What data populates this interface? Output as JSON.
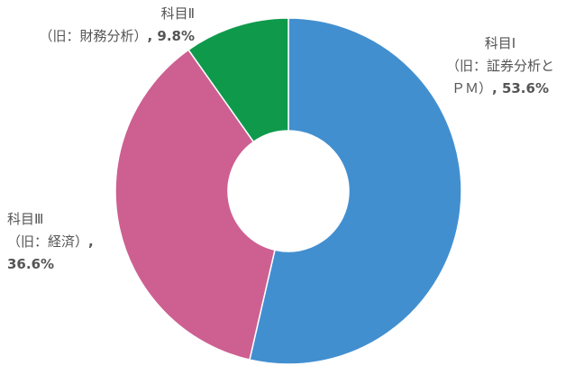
{
  "chart_data": {
    "type": "donut",
    "categories": [
      "科目Ⅰ\n（旧：証券分析と\nＰＭ）",
      "科目Ⅲ\n（旧：経済）",
      "科目Ⅱ\n（旧：財務分析）"
    ],
    "values": [
      53.6,
      36.6,
      9.8
    ],
    "value_labels": [
      "53.6%",
      "36.6%",
      "9.8%"
    ],
    "label_separator": ", ",
    "colors": [
      "#428fd0",
      "#cd6091",
      "#0f9a4b"
    ]
  }
}
